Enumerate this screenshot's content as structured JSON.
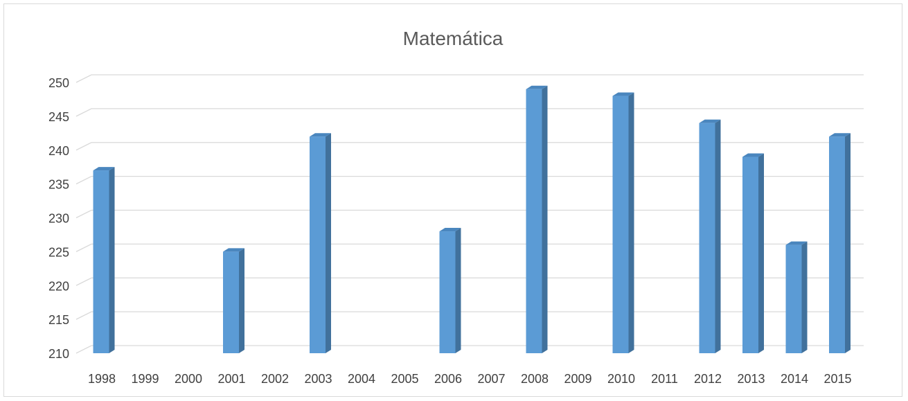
{
  "chart_data": {
    "type": "bar",
    "title": "Matemática",
    "xlabel": "",
    "ylabel": "",
    "categories": [
      "1998",
      "1999",
      "2000",
      "2001",
      "2002",
      "2003",
      "2004",
      "2005",
      "2006",
      "2007",
      "2008",
      "2009",
      "2010",
      "2011",
      "2012",
      "2013",
      "2014",
      "2015"
    ],
    "values": [
      237,
      null,
      null,
      225,
      null,
      242,
      null,
      null,
      228,
      null,
      249,
      null,
      248,
      null,
      244,
      239,
      226,
      242
    ],
    "ylim": [
      210,
      250
    ],
    "yticks": [
      "210",
      "215",
      "220",
      "225",
      "230",
      "235",
      "240",
      "245",
      "250"
    ],
    "grid": true,
    "legend": "none",
    "style": "3d-column",
    "colors": {
      "bar_front": "#5b9bd5",
      "bar_side": "#41719c",
      "bar_top": "#4a86be",
      "grid": "#d9d9d9"
    }
  }
}
